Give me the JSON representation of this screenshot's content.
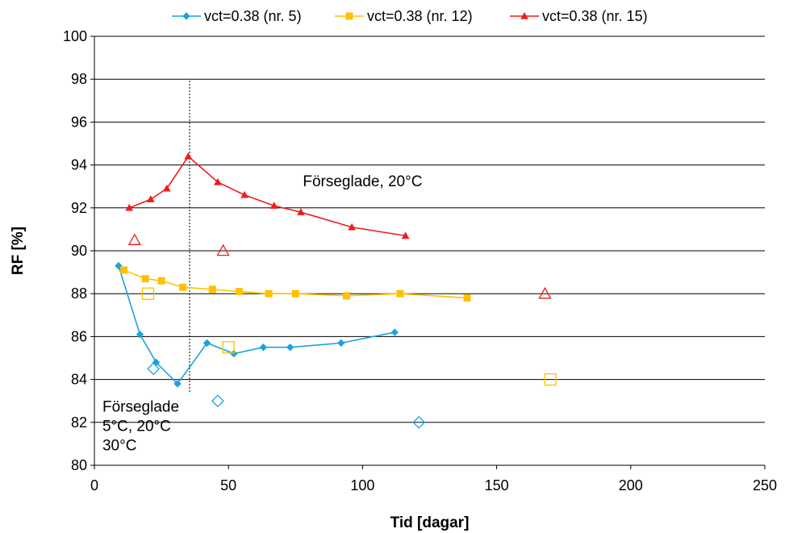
{
  "chart_data": {
    "type": "scatter",
    "xlabel": "Tid [dagar]",
    "ylabel": "RF [%]",
    "xlim": [
      0,
      250
    ],
    "ylim": [
      80,
      100
    ],
    "xticks": [
      0,
      50,
      100,
      150,
      200,
      250
    ],
    "yticks": [
      80,
      82,
      84,
      86,
      88,
      90,
      92,
      94,
      96,
      98,
      100
    ],
    "grid": "horizontal",
    "legend_position": "top",
    "vline_x": 35.5,
    "annotations": [
      {
        "lines": [
          "Förseglade,  20°C"
        ],
        "x": 100,
        "y": 93,
        "anchor": "middle"
      },
      {
        "lines": [
          "Förseglade",
          "5°C, 20°C",
          "30°C"
        ],
        "x": 3,
        "y": 82.5,
        "anchor": "start"
      }
    ],
    "series": [
      {
        "name": "vct=0.38 (nr. 5)",
        "color": "#1aa3de",
        "marker": "diamond",
        "x": [
          9,
          17,
          23,
          31,
          42,
          52,
          63,
          73,
          92,
          112
        ],
        "y": [
          89.3,
          86.1,
          84.8,
          83.8,
          85.7,
          85.2,
          85.5,
          85.5,
          85.7,
          86.2
        ]
      },
      {
        "name": "vct=0.38 (nr. 12)",
        "color": "#ffc000",
        "marker": "square",
        "x": [
          11,
          19,
          25,
          33,
          44,
          54,
          65,
          75,
          94,
          114,
          139
        ],
        "y": [
          89.1,
          88.7,
          88.6,
          88.3,
          88.2,
          88.1,
          88.0,
          88.0,
          87.9,
          88.0,
          87.8
        ]
      },
      {
        "name": "vct=0.38 (nr. 15)",
        "color": "#ee1c1c",
        "marker": "triangle",
        "x": [
          13,
          21,
          27,
          35,
          46,
          56,
          67,
          77,
          96,
          116
        ],
        "y": [
          92.0,
          92.4,
          92.9,
          94.4,
          93.2,
          92.6,
          92.1,
          91.8,
          91.1,
          90.7
        ]
      }
    ],
    "open_markers": [
      {
        "color": "#1aa3de",
        "marker": "diamond",
        "x": [
          22,
          46,
          121
        ],
        "y": [
          84.5,
          83.0,
          82.0
        ]
      },
      {
        "color": "#ffc000",
        "marker": "square",
        "x": [
          20,
          50,
          170
        ],
        "y": [
          88.0,
          85.5,
          84.0
        ]
      },
      {
        "color": "#ee1c1c",
        "marker": "triangle",
        "x": [
          15,
          48,
          168
        ],
        "y": [
          90.5,
          90.0,
          88.0
        ]
      }
    ]
  }
}
